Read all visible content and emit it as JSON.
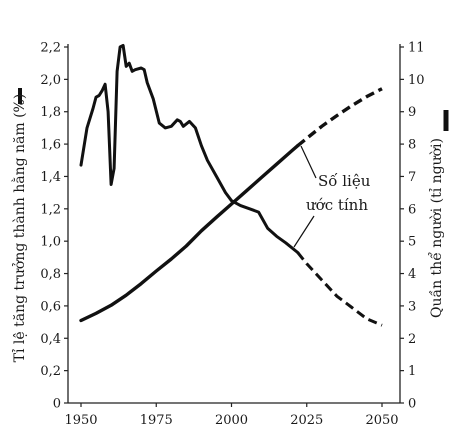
{
  "chart_data": {
    "type": "line",
    "x_ticks": [
      1950,
      1975,
      2000,
      2025,
      2050
    ],
    "xlim": [
      1950,
      2050
    ],
    "left_axis": {
      "label": "Tỉ lệ tăng trưởng thành hằng năm (%)",
      "ylim": [
        0,
        2.2
      ],
      "ticks": [
        "0",
        "0,2",
        "0,4",
        "0,6",
        "0,8",
        "1,0",
        "1,2",
        "1,4",
        "1,6",
        "1,8",
        "2,0",
        "2,2"
      ],
      "tick_values": [
        0,
        0.2,
        0.4,
        0.6,
        0.8,
        1.0,
        1.2,
        1.4,
        1.6,
        1.8,
        2.0,
        2.2
      ],
      "legend_marker": "thin-solid-line"
    },
    "right_axis": {
      "label": "Quần thể người (tỉ người)",
      "ylim": [
        0,
        11
      ],
      "ticks": [
        "0",
        "1",
        "2",
        "3",
        "4",
        "5",
        "6",
        "7",
        "8",
        "9",
        "10",
        "11"
      ],
      "tick_values": [
        0,
        1,
        2,
        3,
        4,
        5,
        6,
        7,
        8,
        9,
        10,
        11
      ],
      "legend_marker": "thick-solid-line"
    },
    "annotation": [
      "Số liệu",
      "ước tính"
    ],
    "series": [
      {
        "axis": "left",
        "style": "thin",
        "actual": [
          [
            1950,
            1.47
          ],
          [
            1952,
            1.7
          ],
          [
            1954,
            1.82
          ],
          [
            1955,
            1.89
          ],
          [
            1956,
            1.9
          ],
          [
            1957,
            1.93
          ],
          [
            1958,
            1.97
          ],
          [
            1959,
            1.8
          ],
          [
            1960,
            1.35
          ],
          [
            1961,
            1.45
          ],
          [
            1962,
            2.05
          ],
          [
            1963,
            2.2
          ],
          [
            1964,
            2.21
          ],
          [
            1965,
            2.08
          ],
          [
            1966,
            2.1
          ],
          [
            1967,
            2.05
          ],
          [
            1968,
            2.06
          ],
          [
            1970,
            2.07
          ],
          [
            1971,
            2.06
          ],
          [
            1972,
            1.98
          ],
          [
            1974,
            1.88
          ],
          [
            1976,
            1.73
          ],
          [
            1978,
            1.7
          ],
          [
            1980,
            1.71
          ],
          [
            1982,
            1.75
          ],
          [
            1983,
            1.74
          ],
          [
            1984,
            1.71
          ],
          [
            1986,
            1.74
          ],
          [
            1988,
            1.7
          ],
          [
            1990,
            1.59
          ],
          [
            1992,
            1.5
          ],
          [
            1995,
            1.4
          ],
          [
            1998,
            1.3
          ],
          [
            2000,
            1.25
          ],
          [
            2003,
            1.22
          ],
          [
            2006,
            1.2
          ],
          [
            2009,
            1.18
          ],
          [
            2012,
            1.08
          ],
          [
            2015,
            1.03
          ],
          [
            2018,
            0.99
          ],
          [
            2022,
            0.93
          ]
        ],
        "projected": [
          [
            2022,
            0.93
          ],
          [
            2025,
            0.86
          ],
          [
            2030,
            0.76
          ],
          [
            2035,
            0.66
          ],
          [
            2040,
            0.59
          ],
          [
            2045,
            0.52
          ],
          [
            2050,
            0.48
          ]
        ]
      },
      {
        "axis": "right",
        "style": "thick",
        "actual": [
          [
            1950,
            2.55
          ],
          [
            1955,
            2.77
          ],
          [
            1960,
            3.02
          ],
          [
            1965,
            3.33
          ],
          [
            1970,
            3.69
          ],
          [
            1975,
            4.08
          ],
          [
            1980,
            4.45
          ],
          [
            1985,
            4.85
          ],
          [
            1990,
            5.32
          ],
          [
            1995,
            5.74
          ],
          [
            2000,
            6.15
          ],
          [
            2005,
            6.56
          ],
          [
            2010,
            6.97
          ],
          [
            2015,
            7.38
          ],
          [
            2020,
            7.79
          ],
          [
            2022,
            7.95
          ]
        ],
        "projected": [
          [
            2022,
            7.95
          ],
          [
            2025,
            8.18
          ],
          [
            2030,
            8.55
          ],
          [
            2035,
            8.88
          ],
          [
            2040,
            9.19
          ],
          [
            2045,
            9.47
          ],
          [
            2050,
            9.71
          ]
        ]
      }
    ]
  }
}
